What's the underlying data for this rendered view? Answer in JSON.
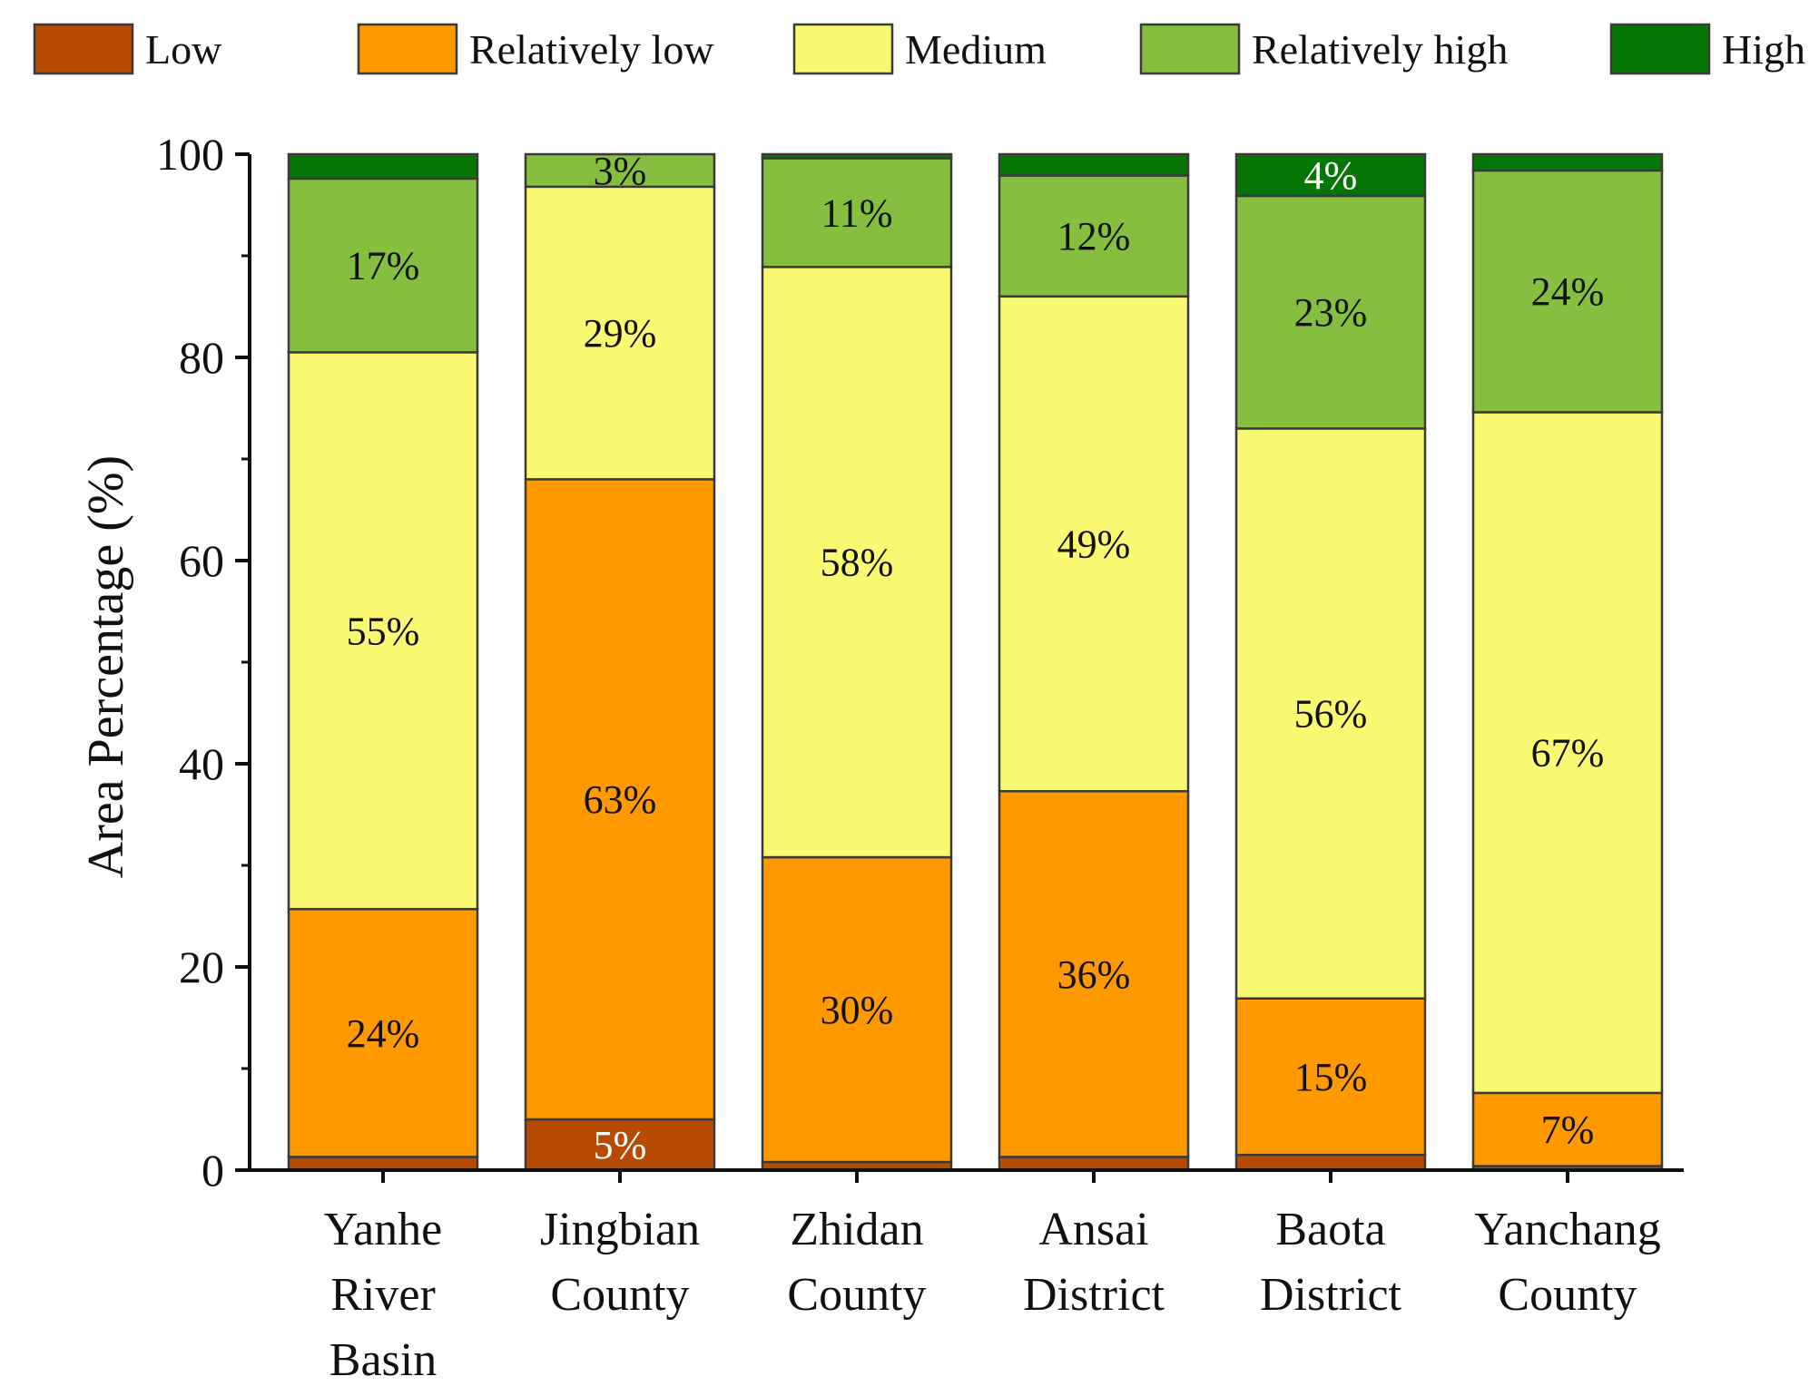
{
  "chart_data": {
    "type": "bar",
    "stacked": true,
    "title": "",
    "xlabel": "",
    "ylabel": "Area Percentage (%)",
    "ylim": [
      0,
      100
    ],
    "yticks": [
      0,
      20,
      40,
      60,
      80,
      100
    ],
    "grid": false,
    "legend_position": "top",
    "categories": [
      [
        "Yanhe",
        "River",
        "Basin"
      ],
      [
        "Jingbian",
        "County"
      ],
      [
        "Zhidan",
        "County"
      ],
      [
        "Ansai",
        "District"
      ],
      [
        "Baota",
        "District"
      ],
      [
        "Yanchang",
        "County"
      ]
    ],
    "series": [
      {
        "name": "Low",
        "color": "#B84B04",
        "values": [
          1.3,
          5.0,
          0.8,
          1.3,
          1.5,
          0.4
        ],
        "labels": [
          "",
          "5%",
          "",
          "",
          "",
          ""
        ],
        "label_color": "#ffffff"
      },
      {
        "name": "Relatively low",
        "color": "#FF9900",
        "values": [
          24.4,
          63.0,
          30.0,
          36.0,
          15.4,
          7.2
        ],
        "labels": [
          "24%",
          "63%",
          "30%",
          "36%",
          "15%",
          "7%"
        ],
        "label_color": "#111111"
      },
      {
        "name": "Medium",
        "color": "#FAFA72",
        "values": [
          54.8,
          28.8,
          58.1,
          48.7,
          56.1,
          67.0
        ],
        "labels": [
          "55%",
          "29%",
          "58%",
          "49%",
          "56%",
          "67%"
        ],
        "label_color": "#111111"
      },
      {
        "name": "Relatively high",
        "color": "#86BF3F",
        "values": [
          17.1,
          3.2,
          10.7,
          11.9,
          22.9,
          23.8
        ],
        "labels": [
          "17%",
          "3%",
          "11%",
          "12%",
          "23%",
          "24%"
        ],
        "label_color": "#111111"
      },
      {
        "name": "High",
        "color": "#057505",
        "values": [
          2.4,
          0.0,
          0.4,
          2.1,
          4.1,
          1.6
        ],
        "labels": [
          "",
          "",
          "",
          "",
          "4%",
          ""
        ],
        "label_color": "#ffffff"
      }
    ]
  }
}
